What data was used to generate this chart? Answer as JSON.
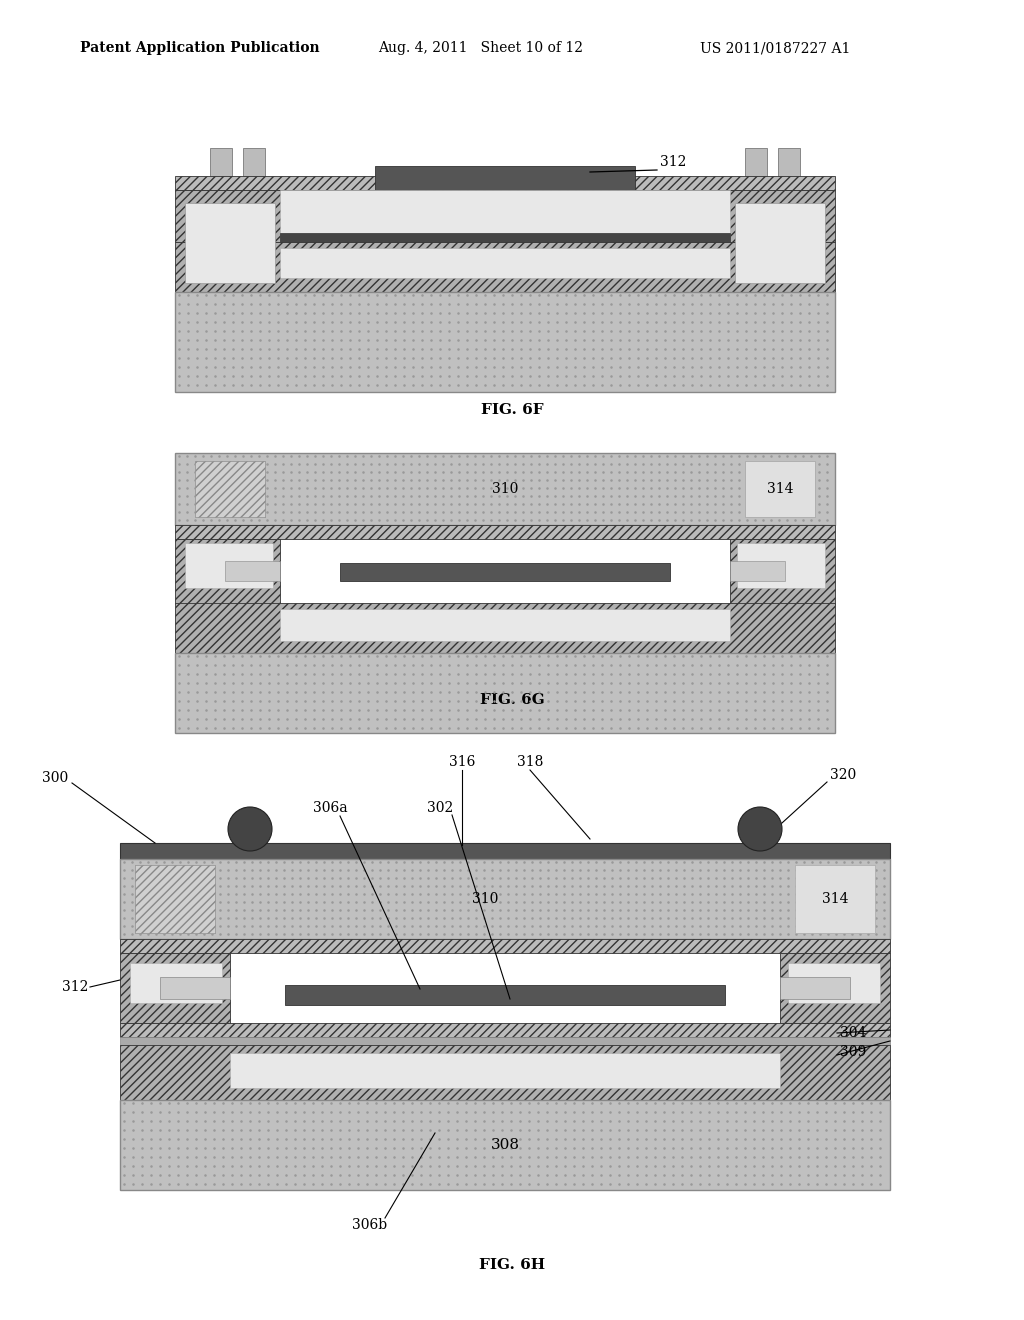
{
  "bg_color": "#ffffff",
  "header_left": "Patent Application Publication",
  "header_mid": "Aug. 4, 2011   Sheet 10 of 12",
  "header_right": "US 2011/0187227 A1",
  "fig_labels": [
    "FIG. 6F",
    "FIG. 6G",
    "FIG. 6H"
  ],
  "c_substrate": "#c0c0c0",
  "c_hatch_face": "#b0b0b0",
  "c_hatch_dark": "#2a2a2a",
  "c_white": "#f0f0f0",
  "c_dark": "#333333",
  "c_mid": "#888888",
  "c_piezo": "#b8b8b8",
  "c_piezo_block": "#cccccc",
  "c_light_gray": "#d8d8d8",
  "c_connector": "#999999",
  "c_bump": "#555555",
  "c_top_band": "#555555",
  "c_electrode": "#444444"
}
